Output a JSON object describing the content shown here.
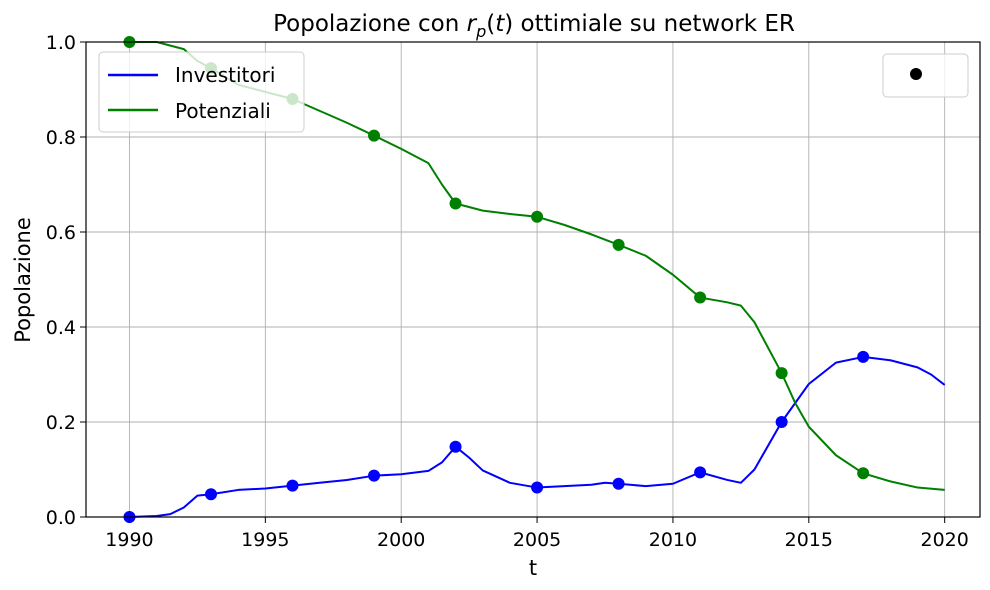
{
  "chart_data": {
    "type": "line",
    "title_prefix": "Popolazione con ",
    "title_symbol": "r",
    "title_subscript": "p",
    "title_argument": "(t)",
    "title_suffix": " ottimiale su network ER",
    "xlabel": "t",
    "ylabel": "Popolazione",
    "xlim": [
      1988.4,
      2021.3
    ],
    "ylim": [
      0,
      1
    ],
    "xticks": [
      1990,
      1995,
      2000,
      2005,
      2010,
      2015,
      2020
    ],
    "yticks": [
      0.0,
      0.2,
      0.4,
      0.6,
      0.8,
      1.0
    ],
    "grid": true,
    "legend_position": "upper-left",
    "series": [
      {
        "name": "Investitori",
        "color": "#0000ff",
        "line": [
          [
            1990,
            0.0
          ],
          [
            1991,
            0.002
          ],
          [
            1991.5,
            0.006
          ],
          [
            1992,
            0.02
          ],
          [
            1992.5,
            0.045
          ],
          [
            1993,
            0.048
          ],
          [
            1994,
            0.057
          ],
          [
            1995,
            0.06
          ],
          [
            1996,
            0.066
          ],
          [
            1997,
            0.072
          ],
          [
            1998,
            0.078
          ],
          [
            1999,
            0.087
          ],
          [
            2000,
            0.09
          ],
          [
            2001,
            0.097
          ],
          [
            2001.5,
            0.115
          ],
          [
            2002,
            0.148
          ],
          [
            2002.5,
            0.125
          ],
          [
            2003,
            0.098
          ],
          [
            2004,
            0.072
          ],
          [
            2005,
            0.062
          ],
          [
            2006,
            0.065
          ],
          [
            2007,
            0.068
          ],
          [
            2007.5,
            0.072
          ],
          [
            2008,
            0.07
          ],
          [
            2009,
            0.065
          ],
          [
            2010,
            0.07
          ],
          [
            2011,
            0.094
          ],
          [
            2012,
            0.078
          ],
          [
            2012.5,
            0.072
          ],
          [
            2013,
            0.1
          ],
          [
            2014,
            0.2
          ],
          [
            2014.5,
            0.24
          ],
          [
            2015,
            0.28
          ],
          [
            2016,
            0.325
          ],
          [
            2017,
            0.337
          ],
          [
            2018,
            0.33
          ],
          [
            2019,
            0.315
          ],
          [
            2019.5,
            0.3
          ],
          [
            2020,
            0.278
          ]
        ],
        "markers": [
          [
            1990,
            0.0
          ],
          [
            1993,
            0.048
          ],
          [
            1996,
            0.066
          ],
          [
            1999,
            0.087
          ],
          [
            2002,
            0.148
          ],
          [
            2005,
            0.062
          ],
          [
            2008,
            0.07
          ],
          [
            2011,
            0.094
          ],
          [
            2014,
            0.2
          ],
          [
            2017,
            0.337
          ]
        ]
      },
      {
        "name": "Potenziali",
        "color": "#008000",
        "line": [
          [
            1990,
            1.0
          ],
          [
            1991,
            1.0
          ],
          [
            1992,
            0.985
          ],
          [
            1992.5,
            0.96
          ],
          [
            1993,
            0.945
          ],
          [
            1994,
            0.91
          ],
          [
            1995,
            0.895
          ],
          [
            1996,
            0.88
          ],
          [
            1997,
            0.855
          ],
          [
            1998,
            0.83
          ],
          [
            1999,
            0.803
          ],
          [
            2000,
            0.775
          ],
          [
            2001,
            0.745
          ],
          [
            2001.5,
            0.7
          ],
          [
            2002,
            0.66
          ],
          [
            2003,
            0.645
          ],
          [
            2004,
            0.638
          ],
          [
            2005,
            0.632
          ],
          [
            2006,
            0.615
          ],
          [
            2007,
            0.595
          ],
          [
            2008,
            0.573
          ],
          [
            2009,
            0.55
          ],
          [
            2010,
            0.51
          ],
          [
            2011,
            0.462
          ],
          [
            2012,
            0.452
          ],
          [
            2012.5,
            0.445
          ],
          [
            2013,
            0.41
          ],
          [
            2014,
            0.303
          ],
          [
            2014.5,
            0.24
          ],
          [
            2015,
            0.19
          ],
          [
            2016,
            0.13
          ],
          [
            2017,
            0.092
          ],
          [
            2018,
            0.075
          ],
          [
            2019,
            0.062
          ],
          [
            2020,
            0.057
          ]
        ],
        "markers": [
          [
            1990,
            1.0
          ],
          [
            1993,
            0.945
          ],
          [
            1996,
            0.88
          ],
          [
            1999,
            0.803
          ],
          [
            2002,
            0.66
          ],
          [
            2005,
            0.632
          ],
          [
            2008,
            0.573
          ],
          [
            2011,
            0.462
          ],
          [
            2014,
            0.303
          ],
          [
            2017,
            0.092
          ]
        ]
      }
    ],
    "extra_legend": {
      "marker_color": "#000000",
      "label": ""
    }
  }
}
